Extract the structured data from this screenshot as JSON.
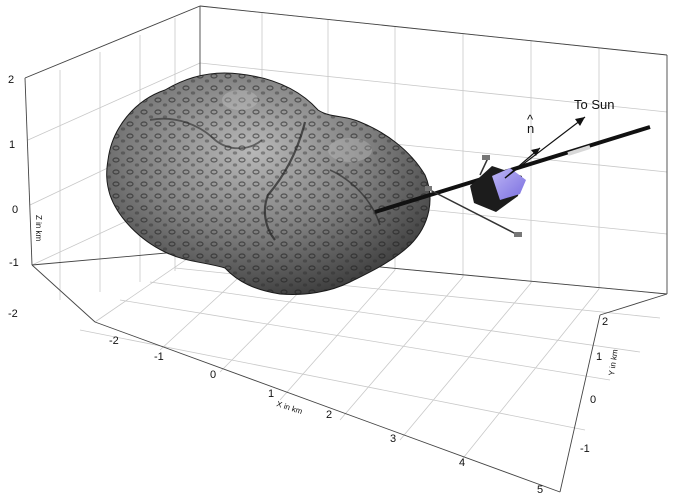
{
  "axes": {
    "x": {
      "label": "X in km",
      "ticks": [
        "-2",
        "-1",
        "0",
        "1",
        "2",
        "3",
        "4",
        "5"
      ]
    },
    "y": {
      "label": "Y in km",
      "ticks": [
        "-1",
        "0",
        "1",
        "2"
      ]
    },
    "z": {
      "label": "Z in km",
      "ticks": [
        "-2",
        "-1",
        "0",
        "1",
        "2"
      ]
    }
  },
  "annotations": {
    "to_sun": "To Sun",
    "normal": "n",
    "normal_hat": "^"
  },
  "colors": {
    "comet_dark": "#2b2b2b",
    "comet_light": "#9a9a9a",
    "spacecraft_face": "#8a7de8",
    "grid": "#c8c8c8"
  }
}
